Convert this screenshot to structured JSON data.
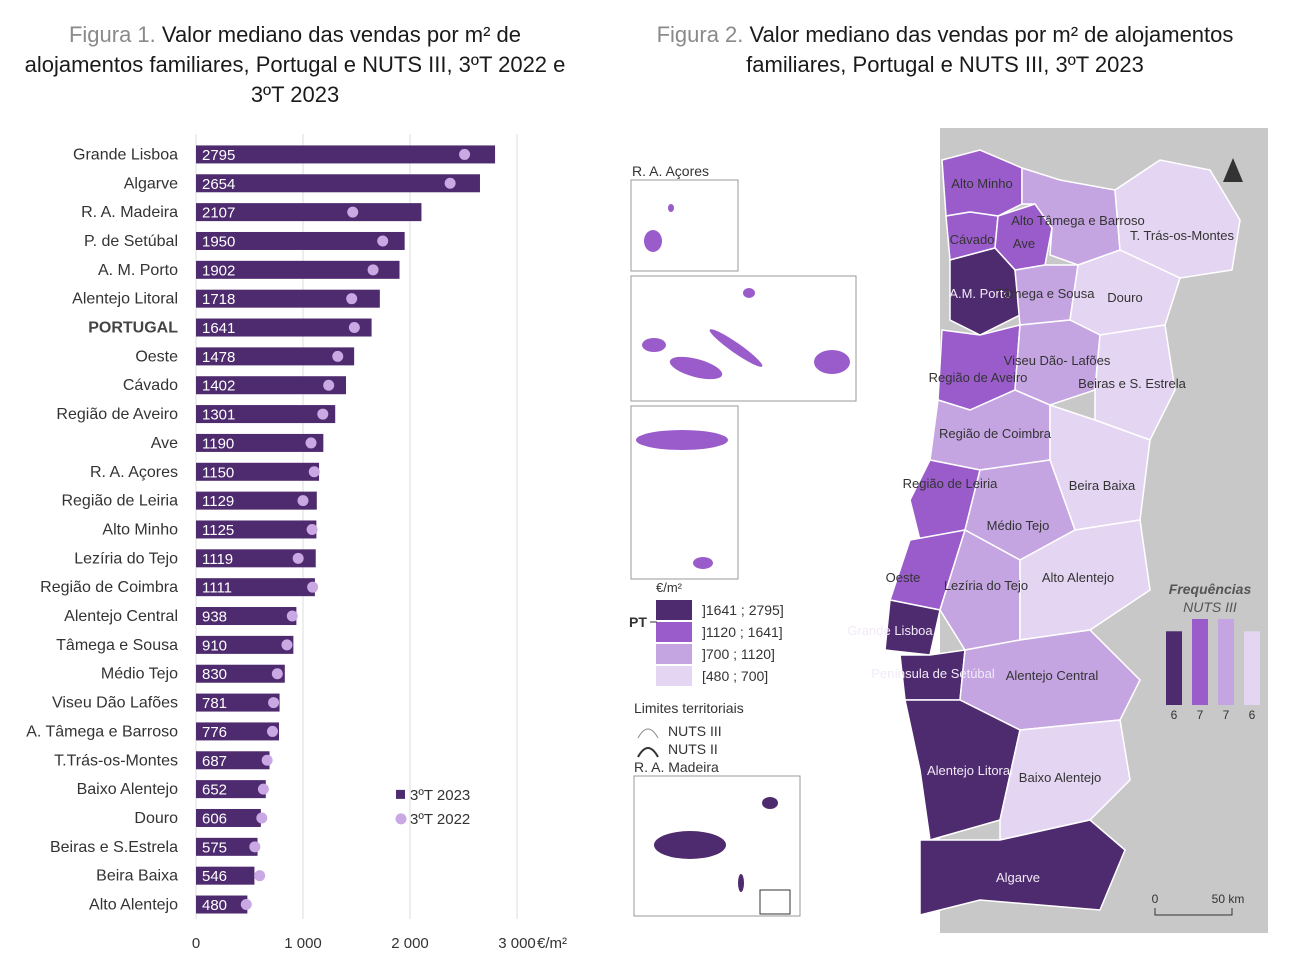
{
  "fig1": {
    "prefix": "Figura 1.",
    "title": "Valor mediano das vendas por m² de alojamentos familiares, Portugal e NUTS III, 3ºT 2022 e 3ºT 2023"
  },
  "fig2": {
    "prefix": "Figura 2.",
    "title": "Valor mediano das vendas por m² de alojamentos familiares, Portugal e NUTS III, 3ºT 2023"
  },
  "chart_data": {
    "type": "bar",
    "orientation": "horizontal",
    "categories": [
      "Grande Lisboa",
      "Algarve",
      "R. A. Madeira",
      "P. de Setúbal",
      "A. M. Porto",
      "Alentejo Litoral",
      "PORTUGAL",
      "Oeste",
      "Cávado",
      "Região de Aveiro",
      "Ave",
      "R. A. Açores",
      "Região de Leiria",
      "Alto Minho",
      "Lezíria do Tejo",
      "Região de Coimbra",
      "Alentejo Central",
      "Tâmega e Sousa",
      "Médio Tejo",
      "Viseu Dão Lafões",
      "A. Tâmega e Barroso",
      "T.Trás-os-Montes",
      "Baixo Alentejo",
      "Douro",
      "Beiras e S.Estrela",
      "Beira Baixa",
      "Alto Alentejo"
    ],
    "series": [
      {
        "name": "3ºT 2023",
        "type": "bar",
        "color": "#4e2a6e",
        "values": [
          2795,
          2654,
          2107,
          1950,
          1902,
          1718,
          1641,
          1478,
          1402,
          1301,
          1190,
          1150,
          1129,
          1125,
          1119,
          1111,
          938,
          910,
          830,
          781,
          776,
          687,
          652,
          606,
          575,
          546,
          480
        ]
      },
      {
        "name": "3ºT 2022",
        "type": "marker",
        "color": "#c9a8e4",
        "values": [
          2510,
          2375,
          1465,
          1745,
          1655,
          1455,
          1480,
          1325,
          1240,
          1185,
          1075,
          1105,
          1000,
          1085,
          955,
          1090,
          900,
          850,
          760,
          725,
          715,
          665,
          630,
          615,
          550,
          595,
          470
        ]
      }
    ],
    "xlim": [
      0,
      3000
    ],
    "xticks": [
      "0",
      "1 000",
      "2 000",
      "3 000"
    ],
    "xlabel": "€/m²"
  },
  "map": {
    "inset_acores": "R. A. Açores",
    "inset_madeira": "R. A. Madeira",
    "legend_unit": "€/m²",
    "legend_pt": "PT",
    "legend_classes": [
      {
        "label": "]1641 ; 2795]",
        "color": "#4e2a6e"
      },
      {
        "label": "]1120 ; 1641]",
        "color": "#9a5ccb"
      },
      {
        "label": "]700 ; 1120]",
        "color": "#c5a5e1"
      },
      {
        "label": "[480 ; 700]",
        "color": "#e4d6f2"
      }
    ],
    "limits_title": "Limites territoriais",
    "limits": [
      "NUTS III",
      "NUTS II"
    ],
    "freq_title": "Frequências",
    "freq_sub": "NUTS III",
    "frequencies": [
      6,
      7,
      7,
      6
    ],
    "scale": [
      "0",
      "50 km"
    ],
    "regions": {
      "alto_minho": "Alto Minho",
      "cavado": "Cávado",
      "ave": "Ave",
      "alto_tamega": "Alto Tâmega e Barroso",
      "tras": "T. Trás-os-Montes",
      "am_porto": "A.M. Porto",
      "tamega": "Tâmega e Sousa",
      "douro": "Douro",
      "aveiro": "Região de Aveiro",
      "viseu": "Viseu Dão- Lafões",
      "beiras": "Beiras e S. Estrela",
      "coimbra": "Região de Coimbra",
      "leiria": "Região de Leiria",
      "beira_baixa": "Beira Baixa",
      "medio_tejo": "Médio Tejo",
      "oeste": "Oeste",
      "leziria": "Lezíria do Tejo",
      "alto_alentejo": "Alto Alentejo",
      "grande_lisboa": "Grande Lisboa",
      "setubal": "Península de Setúbal",
      "alentejo_central": "Alentejo Central",
      "alentejo_litoral": "Alentejo Litoral",
      "baixo_alentejo": "Baixo Alentejo",
      "algarve": "Algarve"
    }
  }
}
